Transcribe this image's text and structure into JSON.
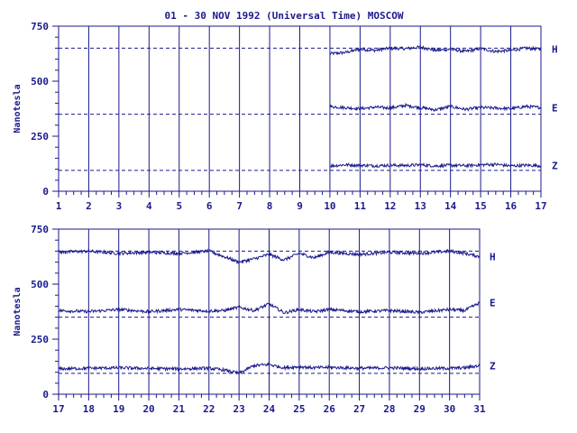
{
  "colors": {
    "ink": "#1a1a8c",
    "background": "#ffffff"
  },
  "chart_data": [
    {
      "type": "line",
      "title": "01 - 30 NOV 1992 (Universal Time) MOSCOW",
      "ylabel": "Nanotesla",
      "xlabel": "",
      "ylim": [
        0,
        750
      ],
      "y_ticks": [
        0,
        250,
        500,
        750
      ],
      "x_range": [
        1,
        17
      ],
      "x_ticks": [
        "1",
        "2",
        "3",
        "4",
        "5",
        "6",
        "7",
        "8",
        "9",
        "10",
        "11",
        "12",
        "13",
        "14",
        "15",
        "16",
        "17"
      ],
      "grid": "vertical at each day",
      "data_start_day": 10,
      "baselines": {
        "H": 650,
        "E": 350,
        "Z": 95
      },
      "series": [
        {
          "name": "H",
          "x": [
            10,
            10.5,
            11,
            11.5,
            12,
            12.5,
            13,
            13.5,
            14,
            14.5,
            15,
            15.5,
            16,
            16.5,
            17
          ],
          "values": [
            625,
            630,
            645,
            640,
            650,
            648,
            655,
            640,
            645,
            635,
            648,
            635,
            640,
            650,
            645
          ]
        },
        {
          "name": "E",
          "x": [
            10,
            10.5,
            11,
            11.5,
            12,
            12.5,
            13,
            13.5,
            14,
            14.5,
            15,
            15.5,
            16,
            16.5,
            17
          ],
          "values": [
            385,
            380,
            375,
            382,
            378,
            390,
            380,
            370,
            385,
            372,
            380,
            378,
            375,
            385,
            380
          ]
        },
        {
          "name": "Z",
          "x": [
            10,
            10.5,
            11,
            11.5,
            12,
            12.5,
            13,
            13.5,
            14,
            14.5,
            15,
            15.5,
            16,
            16.5,
            17
          ],
          "values": [
            115,
            120,
            118,
            116,
            118,
            117,
            120,
            115,
            118,
            116,
            120,
            122,
            115,
            118,
            116
          ]
        }
      ]
    },
    {
      "type": "line",
      "ylabel": "Nanotesla",
      "xlabel": "",
      "ylim": [
        0,
        750
      ],
      "y_ticks": [
        0,
        250,
        500,
        750
      ],
      "x_range": [
        17,
        31
      ],
      "x_ticks": [
        "17",
        "18",
        "19",
        "20",
        "21",
        "22",
        "23",
        "24",
        "25",
        "26",
        "27",
        "28",
        "29",
        "30",
        "31"
      ],
      "grid": "vertical at each day",
      "data_start_day": 17,
      "baselines": {
        "H": 650,
        "E": 350,
        "Z": 95
      },
      "series": [
        {
          "name": "H",
          "x": [
            17,
            18,
            19,
            20,
            21,
            22,
            22.5,
            23,
            23.5,
            24,
            24.5,
            25,
            25.5,
            26,
            27,
            28,
            29,
            30,
            30.5,
            31
          ],
          "values": [
            645,
            650,
            640,
            645,
            640,
            650,
            625,
            600,
            615,
            635,
            610,
            640,
            620,
            645,
            635,
            645,
            640,
            650,
            640,
            625
          ]
        },
        {
          "name": "E",
          "x": [
            17,
            18,
            19,
            20,
            21,
            22,
            22.5,
            23,
            23.5,
            24,
            24.5,
            25,
            25.5,
            26,
            27,
            28,
            29,
            30,
            30.5,
            31
          ],
          "values": [
            380,
            375,
            385,
            375,
            385,
            378,
            380,
            395,
            380,
            410,
            370,
            385,
            375,
            385,
            375,
            380,
            372,
            385,
            380,
            415
          ]
        },
        {
          "name": "Z",
          "x": [
            17,
            18,
            19,
            20,
            21,
            22,
            22.5,
            23,
            23.5,
            24,
            24.5,
            25,
            25.5,
            26,
            27,
            28,
            29,
            30,
            30.5,
            31
          ],
          "values": [
            115,
            118,
            120,
            117,
            115,
            118,
            110,
            95,
            130,
            135,
            120,
            125,
            120,
            122,
            118,
            120,
            116,
            118,
            120,
            130
          ]
        }
      ]
    }
  ]
}
